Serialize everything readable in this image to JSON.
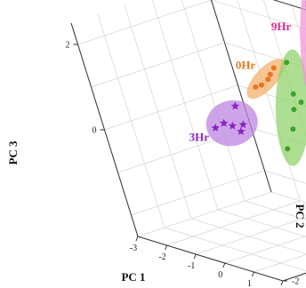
{
  "chart_data": {
    "type": "scatter",
    "projection": "3d",
    "xlabel": "PC 1",
    "ylabel": "PC 2",
    "zlabel": "PC 3",
    "xlim": [
      -3,
      2
    ],
    "ylim": [
      -2,
      3
    ],
    "zlim": [
      -2.5,
      2.5
    ],
    "x_ticks": [
      "-3",
      "-2",
      "-1",
      "0",
      "1",
      "2"
    ],
    "y_ticks": [
      "-2",
      "-1",
      "0",
      "1",
      "2",
      "3"
    ],
    "z_ticks": [
      "2",
      "0"
    ],
    "grid": true,
    "series": [
      {
        "name": "0Hr",
        "color": "#e8761e",
        "ellipse_color": "#f6b06e",
        "marker": "circle",
        "points": [
          [
            -1.45,
            2.2,
            0.45
          ],
          [
            -1.2,
            2.2,
            0.55
          ],
          [
            -1.0,
            2.3,
            0.7
          ],
          [
            -0.85,
            2.3,
            0.85
          ],
          [
            -0.75,
            2.4,
            1.0
          ]
        ]
      },
      {
        "name": "6Hr",
        "color": "#3fa12c",
        "ellipse_color": "#93d36c",
        "marker": "circle",
        "points": [
          [
            0.55,
            0.85,
            -0.3
          ],
          [
            0.6,
            1.2,
            0.1
          ],
          [
            0.7,
            1.35,
            0.55
          ],
          [
            0.75,
            1.45,
            0.9
          ],
          [
            0.95,
            1.45,
            0.75
          ],
          [
            0.7,
            1.6,
            1.6
          ]
        ]
      },
      {
        "name": "3Hr",
        "color": "#8d22c3",
        "ellipse_color": "#bd86e2",
        "marker": "star",
        "points": [
          [
            -0.6,
            -0.35,
            0.2
          ],
          [
            -0.45,
            -0.15,
            0.3
          ],
          [
            -0.15,
            -0.15,
            0.3
          ],
          [
            -0.15,
            0.15,
            0.7
          ],
          [
            0.05,
            -0.1,
            0.2
          ],
          [
            0.1,
            0.0,
            0.35
          ]
        ]
      },
      {
        "name": "9Hr",
        "color": "#e8228f",
        "ellipse_color": "#f493da",
        "marker": "square",
        "points": [
          [
            1.35,
            1.8,
            1.35
          ],
          [
            1.5,
            1.9,
            1.8
          ],
          [
            1.55,
            2.1,
            2.4
          ],
          [
            1.5,
            2.25,
            3.0
          ],
          [
            1.65,
            2.6,
            3.3
          ]
        ]
      }
    ]
  }
}
